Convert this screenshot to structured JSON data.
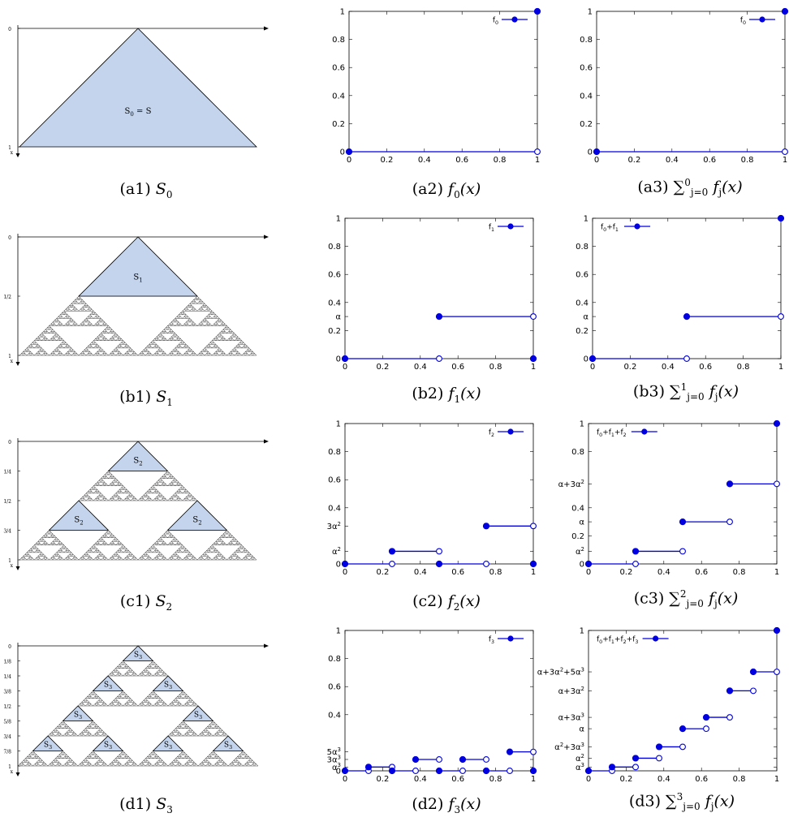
{
  "captions": {
    "a1": {
      "prefix": "(a1) ",
      "fn": "S",
      "sub": "0"
    },
    "a2": {
      "prefix": "(a2) ",
      "fn": "f",
      "sub": "0",
      "arg": "(x)"
    },
    "a3": {
      "prefix": "(a3) ",
      "sum_sub": "j=0",
      "sum_sup": "0",
      "fn": "f",
      "sub": "j",
      "arg": "(x)"
    },
    "b1": {
      "prefix": "(b1) ",
      "fn": "S",
      "sub": "1"
    },
    "b2": {
      "prefix": "(b2) ",
      "fn": "f",
      "sub": "1",
      "arg": "(x)"
    },
    "b3": {
      "prefix": "(b3) ",
      "sum_sub": "j=0",
      "sum_sup": "1",
      "fn": "f",
      "sub": "j",
      "arg": "(x)"
    },
    "c1": {
      "prefix": "(c1) ",
      "fn": "S",
      "sub": "2"
    },
    "c2": {
      "prefix": "(c2) ",
      "fn": "f",
      "sub": "2",
      "arg": "(x)"
    },
    "c3": {
      "prefix": "(c3) ",
      "sum_sub": "j=0",
      "sum_sup": "2",
      "fn": "f",
      "sub": "j",
      "arg": "(x)"
    },
    "d1": {
      "prefix": "(d1) ",
      "fn": "S",
      "sub": "3"
    },
    "d2": {
      "prefix": "(d2) ",
      "fn": "f",
      "sub": "3",
      "arg": "(x)"
    },
    "d3": {
      "prefix": "(d3) ",
      "sum_sub": "j=0",
      "sum_sup": "3",
      "fn": "f",
      "sub": "j",
      "arg": "(x)"
    }
  },
  "triangles": [
    {
      "id": "a1",
      "level": 0,
      "region_label": "S0 = S",
      "yticks": [
        "0",
        "1"
      ],
      "axis_var": "x"
    },
    {
      "id": "b1",
      "level": 1,
      "region_label": "S1",
      "yticks": [
        "0",
        "1/2",
        "1"
      ],
      "axis_var": "x"
    },
    {
      "id": "c1",
      "level": 2,
      "region_label": "S2",
      "yticks": [
        "0",
        "1/4",
        "1/2",
        "3/4",
        "1"
      ],
      "axis_var": "x"
    },
    {
      "id": "d1",
      "level": 3,
      "region_label": "S3",
      "yticks": [
        "0",
        "1/8",
        "1/4",
        "3/8",
        "1/2",
        "5/8",
        "3/4",
        "7/8",
        "1"
      ],
      "axis_var": "x"
    }
  ],
  "colors": {
    "fill": "#c4d4ec",
    "series": "#0000e0",
    "axis": "#000000"
  },
  "chart_data": [
    {
      "id": "a2",
      "type": "line",
      "title": "",
      "legend": "f0",
      "legend_position": "top-right",
      "alpha": 0.3,
      "xlim": [
        0,
        1
      ],
      "ylim": [
        0,
        1
      ],
      "xticks": [
        "0",
        "0.2",
        "0.4",
        "0.6",
        "0.8",
        "1"
      ],
      "yticks": [
        {
          "v": 0,
          "label": "0"
        },
        {
          "v": 0.2,
          "label": "0.2"
        },
        {
          "v": 0.4,
          "label": "0.4"
        },
        {
          "v": 0.6,
          "label": "0.6"
        },
        {
          "v": 0.8,
          "label": "0.8"
        },
        {
          "v": 1,
          "label": "1"
        }
      ],
      "segments": [
        {
          "x0": 0,
          "x1": 1,
          "y": 0,
          "open_end": true
        }
      ],
      "points": [
        {
          "x": 1,
          "y": 1
        }
      ]
    },
    {
      "id": "a3",
      "type": "line",
      "title": "",
      "legend": "f0",
      "legend_position": "top-right",
      "alpha": 0.3,
      "xlim": [
        0,
        1
      ],
      "ylim": [
        0,
        1
      ],
      "xticks": [
        "0",
        "0.2",
        "0.4",
        "0.6",
        "0.8",
        "1"
      ],
      "yticks": [
        {
          "v": 0,
          "label": "0"
        },
        {
          "v": 0.2,
          "label": "0.2"
        },
        {
          "v": 0.4,
          "label": "0.4"
        },
        {
          "v": 0.6,
          "label": "0.6"
        },
        {
          "v": 0.8,
          "label": "0.8"
        },
        {
          "v": 1,
          "label": "1"
        }
      ],
      "segments": [
        {
          "x0": 0,
          "x1": 1,
          "y": 0,
          "open_end": true
        }
      ],
      "points": [
        {
          "x": 1,
          "y": 1
        }
      ]
    },
    {
      "id": "b2",
      "type": "line",
      "title": "",
      "legend": "f1",
      "legend_position": "top-right",
      "alpha": 0.3,
      "xlim": [
        0,
        1
      ],
      "ylim": [
        0,
        1
      ],
      "xticks": [
        "0",
        "0.2",
        "0.4",
        "0.6",
        "0.8",
        "1"
      ],
      "yticks": [
        {
          "v": 0,
          "label": "0"
        },
        {
          "v": 0.2,
          "label": "0.2"
        },
        {
          "v": 0.3,
          "label": "α"
        },
        {
          "v": 0.4,
          "label": "0.4"
        },
        {
          "v": 0.6,
          "label": "0.6"
        },
        {
          "v": 0.8,
          "label": "0.8"
        },
        {
          "v": 1,
          "label": "1"
        }
      ],
      "segments": [
        {
          "x0": 0,
          "x1": 0.5,
          "y": 0,
          "open_end": true
        },
        {
          "x0": 0.5,
          "x1": 1,
          "y": 0.3,
          "open_end": true
        }
      ],
      "points": [
        {
          "x": 1,
          "y": 0
        }
      ]
    },
    {
      "id": "b3",
      "type": "line",
      "title": "",
      "legend": "f0+f1",
      "legend_position": "top-left",
      "alpha": 0.3,
      "xlim": [
        0,
        1
      ],
      "ylim": [
        0,
        1
      ],
      "xticks": [
        "0",
        "0.2",
        "0.4",
        "0.6",
        "0.8",
        "1"
      ],
      "yticks": [
        {
          "v": 0,
          "label": "0"
        },
        {
          "v": 0.2,
          "label": "0.2"
        },
        {
          "v": 0.3,
          "label": "α"
        },
        {
          "v": 0.4,
          "label": "0.4"
        },
        {
          "v": 0.6,
          "label": "0.6"
        },
        {
          "v": 0.8,
          "label": "0.8"
        },
        {
          "v": 1,
          "label": "1"
        }
      ],
      "segments": [
        {
          "x0": 0,
          "x1": 0.5,
          "y": 0,
          "open_end": true
        },
        {
          "x0": 0.5,
          "x1": 1,
          "y": 0.3,
          "open_end": true
        }
      ],
      "points": [
        {
          "x": 1,
          "y": 1
        }
      ]
    },
    {
      "id": "c2",
      "type": "line",
      "title": "",
      "legend": "f2",
      "legend_position": "top-right",
      "alpha": 0.3,
      "xlim": [
        0,
        1
      ],
      "ylim": [
        0,
        1
      ],
      "xticks": [
        "0",
        "0.2",
        "0.4",
        "0.6",
        "0.8",
        "1"
      ],
      "yticks": [
        {
          "v": 0,
          "label": "0"
        },
        {
          "v": 0.09,
          "label": "α2"
        },
        {
          "v": 0.27,
          "label": "3α2"
        },
        {
          "v": 0.4,
          "label": "0.4"
        },
        {
          "v": 0.6,
          "label": "0.6"
        },
        {
          "v": 0.8,
          "label": "0.8"
        },
        {
          "v": 1,
          "label": "1"
        }
      ],
      "segments": [
        {
          "x0": 0,
          "x1": 0.25,
          "y": 0,
          "open_end": true
        },
        {
          "x0": 0.25,
          "x1": 0.5,
          "y": 0.09,
          "open_end": true
        },
        {
          "x0": 0.5,
          "x1": 0.75,
          "y": 0,
          "open_end": true
        },
        {
          "x0": 0.75,
          "x1": 1,
          "y": 0.27,
          "open_end": true
        }
      ],
      "points": [
        {
          "x": 1,
          "y": 0
        }
      ]
    },
    {
      "id": "c3",
      "type": "line",
      "title": "",
      "legend": "f0+f1+f2",
      "legend_position": "top-left",
      "alpha": 0.3,
      "xlim": [
        0,
        1
      ],
      "ylim": [
        0,
        1
      ],
      "xticks": [
        "0",
        "0.2",
        "0.4",
        "0.6",
        "0.8",
        "1"
      ],
      "yticks": [
        {
          "v": 0,
          "label": "0"
        },
        {
          "v": 0.09,
          "label": "α2"
        },
        {
          "v": 0.2,
          "label": "0.2"
        },
        {
          "v": 0.3,
          "label": "α"
        },
        {
          "v": 0.4,
          "label": "0.4"
        },
        {
          "v": 0.57,
          "label": "α+3α2"
        },
        {
          "v": 0.8,
          "label": "0.8"
        },
        {
          "v": 1,
          "label": "1"
        }
      ],
      "segments": [
        {
          "x0": 0,
          "x1": 0.25,
          "y": 0,
          "open_end": true
        },
        {
          "x0": 0.25,
          "x1": 0.5,
          "y": 0.09,
          "open_end": true
        },
        {
          "x0": 0.5,
          "x1": 0.75,
          "y": 0.3,
          "open_end": true
        },
        {
          "x0": 0.75,
          "x1": 1,
          "y": 0.57,
          "open_end": true
        }
      ],
      "points": [
        {
          "x": 1,
          "y": 1
        }
      ]
    },
    {
      "id": "d2",
      "type": "line",
      "title": "",
      "legend": "f3",
      "legend_position": "top-right",
      "alpha": 0.3,
      "xlim": [
        0,
        1
      ],
      "ylim": [
        0,
        1
      ],
      "xticks": [
        "0",
        "0.2",
        "0.4",
        "0.6",
        "0.8",
        "1"
      ],
      "yticks": [
        {
          "v": 0,
          "label": "0"
        },
        {
          "v": 0.027,
          "label": "α3"
        },
        {
          "v": 0.081,
          "label": "3α3"
        },
        {
          "v": 0.135,
          "label": "5α3"
        },
        {
          "v": 0.4,
          "label": "0.4"
        },
        {
          "v": 0.6,
          "label": "0.6"
        },
        {
          "v": 0.8,
          "label": "0.8"
        },
        {
          "v": 1,
          "label": "1"
        }
      ],
      "segments": [
        {
          "x0": 0,
          "x1": 0.125,
          "y": 0,
          "open_end": true
        },
        {
          "x0": 0.125,
          "x1": 0.25,
          "y": 0.027,
          "open_end": true
        },
        {
          "x0": 0.25,
          "x1": 0.375,
          "y": 0,
          "open_end": true
        },
        {
          "x0": 0.375,
          "x1": 0.5,
          "y": 0.081,
          "open_end": true
        },
        {
          "x0": 0.5,
          "x1": 0.625,
          "y": 0,
          "open_end": true
        },
        {
          "x0": 0.625,
          "x1": 0.75,
          "y": 0.081,
          "open_end": true
        },
        {
          "x0": 0.75,
          "x1": 0.875,
          "y": 0,
          "open_end": true
        },
        {
          "x0": 0.875,
          "x1": 1,
          "y": 0.135,
          "open_end": true
        }
      ],
      "points": [
        {
          "x": 1,
          "y": 0
        }
      ]
    },
    {
      "id": "d3",
      "type": "line",
      "title": "",
      "legend": "f0+f1+f2+f3",
      "legend_position": "top-left",
      "alpha": 0.3,
      "xlim": [
        0,
        1
      ],
      "ylim": [
        0,
        1
      ],
      "xticks": [
        "0",
        "0.2",
        "0.4",
        "0.6",
        "0.8",
        "1"
      ],
      "yticks": [
        {
          "v": 0.027,
          "label": "α3"
        },
        {
          "v": 0.09,
          "label": "α2"
        },
        {
          "v": 0.171,
          "label": "α2+3α3"
        },
        {
          "v": 0.3,
          "label": "α"
        },
        {
          "v": 0.381,
          "label": "α+3α3"
        },
        {
          "v": 0.57,
          "label": "α+3α2"
        },
        {
          "v": 0.705,
          "label": "α+3α2+5α3"
        },
        {
          "v": 1,
          "label": "1"
        }
      ],
      "segments": [
        {
          "x0": 0,
          "x1": 0.125,
          "y": 0,
          "open_end": true
        },
        {
          "x0": 0.125,
          "x1": 0.25,
          "y": 0.027,
          "open_end": true
        },
        {
          "x0": 0.25,
          "x1": 0.375,
          "y": 0.09,
          "open_end": true
        },
        {
          "x0": 0.375,
          "x1": 0.5,
          "y": 0.171,
          "open_end": true
        },
        {
          "x0": 0.5,
          "x1": 0.625,
          "y": 0.3,
          "open_end": true
        },
        {
          "x0": 0.625,
          "x1": 0.75,
          "y": 0.381,
          "open_end": true
        },
        {
          "x0": 0.75,
          "x1": 0.875,
          "y": 0.57,
          "open_end": true
        },
        {
          "x0": 0.875,
          "x1": 1,
          "y": 0.705,
          "open_end": true
        }
      ],
      "points": [
        {
          "x": 1,
          "y": 1
        }
      ]
    }
  ]
}
